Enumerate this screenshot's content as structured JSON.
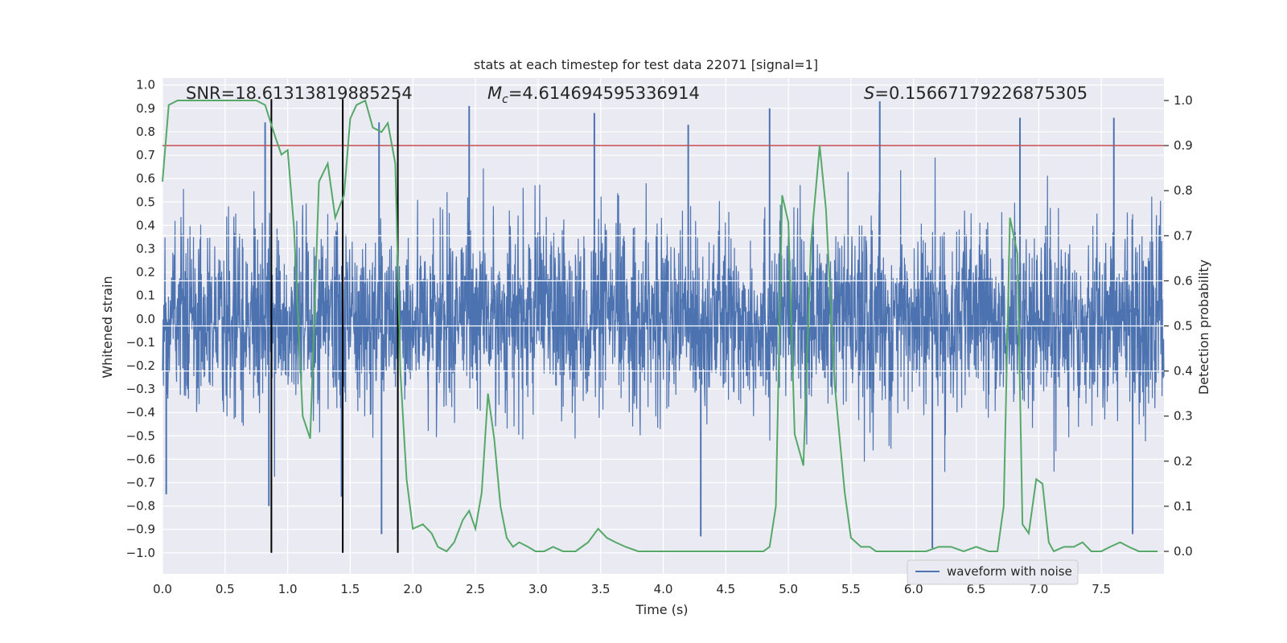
{
  "chart_data": {
    "type": "line",
    "title": "stats at each timestep for test data 22071 [signal=1]",
    "xlabel": "Time (s)",
    "ylabel_left": "Whitened strain",
    "ylabel_right": "Detection probability",
    "xlim": [
      0.0,
      8.0
    ],
    "ylim_left": [
      -1.09,
      1.03
    ],
    "ylim_right": [
      -0.05,
      1.05
    ],
    "x_ticks": [
      0.0,
      0.5,
      1.0,
      1.5,
      2.0,
      2.5,
      3.0,
      3.5,
      4.0,
      4.5,
      5.0,
      5.5,
      6.0,
      6.5,
      7.0,
      7.5
    ],
    "x_tick_labels": [
      "0.0",
      "0.5",
      "1.0",
      "1.5",
      "2.0",
      "2.5",
      "3.0",
      "3.5",
      "4.0",
      "4.5",
      "5.0",
      "5.5",
      "6.0",
      "6.5",
      "7.0",
      "7.5"
    ],
    "y_left_ticks": [
      1.0,
      0.9,
      0.8,
      0.7,
      0.6,
      0.5,
      0.4,
      0.3,
      0.2,
      0.1,
      0.0,
      -0.1,
      -0.2,
      -0.3,
      -0.4,
      -0.5,
      -0.6,
      -0.7,
      -0.8,
      -0.9,
      -1.0
    ],
    "y_left_tick_labels": [
      "1.0",
      "0.9",
      "0.8",
      "0.7",
      "0.6",
      "0.5",
      "0.4",
      "0.3",
      "0.2",
      "0.1",
      "0.0",
      "−0.1",
      "−0.2",
      "−0.3",
      "−0.4",
      "−0.5",
      "−0.6",
      "−0.7",
      "−0.8",
      "−0.9",
      "−1.0"
    ],
    "y_right_ticks": [
      1.0,
      0.9,
      0.8,
      0.7,
      0.6,
      0.5,
      0.4,
      0.3,
      0.2,
      0.1,
      0.0
    ],
    "y_right_tick_labels": [
      "1.0",
      "0.9",
      "0.8",
      "0.7",
      "0.6",
      "0.5",
      "0.4",
      "0.3",
      "0.2",
      "0.1",
      "0.0"
    ],
    "annotations": {
      "snr": "SNR=18.61313819885254",
      "mc_symbol": "M",
      "mc_subscript": "c",
      "mc_value": "=4.614694595336914",
      "s_symbol": "S",
      "s_value": "=0.15667179226875305"
    },
    "threshold": {
      "value": 0.9,
      "axis": "right",
      "color": "#c44e52"
    },
    "vertical_markers": {
      "x": [
        0.87,
        1.44,
        1.88
      ],
      "y_range": [
        -1.0,
        0.94
      ],
      "color": "#000000"
    },
    "series": [
      {
        "name": "waveform with noise",
        "axis": "left",
        "color": "#4c72b0",
        "style": "dense noisy waveform",
        "x_range": [
          0.0,
          8.0
        ],
        "typical_amplitude": 0.35,
        "notable_positive_peaks": [
          {
            "x": 0.82,
            "y": 0.84
          },
          {
            "x": 1.73,
            "y": 0.84
          },
          {
            "x": 2.45,
            "y": 0.91
          },
          {
            "x": 3.45,
            "y": 0.88
          },
          {
            "x": 4.2,
            "y": 0.83
          },
          {
            "x": 4.85,
            "y": 0.9
          },
          {
            "x": 5.73,
            "y": 0.93
          },
          {
            "x": 6.85,
            "y": 0.86
          },
          {
            "x": 7.6,
            "y": 0.86
          }
        ],
        "notable_negative_peaks": [
          {
            "x": 0.03,
            "y": -0.75
          },
          {
            "x": 0.85,
            "y": -0.8
          },
          {
            "x": 1.43,
            "y": -0.76
          },
          {
            "x": 1.75,
            "y": -0.92
          },
          {
            "x": 1.88,
            "y": -0.95
          },
          {
            "x": 4.3,
            "y": -0.93
          },
          {
            "x": 6.15,
            "y": -0.98
          },
          {
            "x": 7.75,
            "y": -0.92
          }
        ]
      },
      {
        "name": "detection probability",
        "axis": "right",
        "color": "#55a868",
        "x": [
          0.0,
          0.05,
          0.12,
          0.2,
          0.3,
          0.45,
          0.6,
          0.75,
          0.82,
          0.9,
          0.95,
          1.0,
          1.05,
          1.12,
          1.18,
          1.25,
          1.32,
          1.38,
          1.45,
          1.5,
          1.55,
          1.62,
          1.68,
          1.75,
          1.8,
          1.86,
          1.9,
          1.95,
          2.0,
          2.08,
          2.15,
          2.2,
          2.27,
          2.33,
          2.4,
          2.45,
          2.5,
          2.55,
          2.6,
          2.65,
          2.7,
          2.75,
          2.8,
          2.85,
          2.92,
          2.98,
          3.05,
          3.12,
          3.2,
          3.3,
          3.4,
          3.48,
          3.55,
          3.62,
          3.7,
          3.8,
          3.9,
          4.0,
          4.2,
          4.5,
          4.7,
          4.8,
          4.85,
          4.9,
          4.95,
          5.0,
          5.05,
          5.12,
          5.18,
          5.25,
          5.3,
          5.37,
          5.45,
          5.5,
          5.58,
          5.65,
          5.7,
          5.8,
          5.9,
          6.0,
          6.1,
          6.2,
          6.3,
          6.4,
          6.5,
          6.6,
          6.67,
          6.72,
          6.77,
          6.83,
          6.87,
          6.92,
          6.98,
          7.03,
          7.08,
          7.12,
          7.2,
          7.28,
          7.35,
          7.42,
          7.5,
          7.57,
          7.65,
          7.72,
          7.8,
          7.87,
          7.95
        ],
        "y": [
          0.82,
          0.99,
          1.0,
          1.0,
          1.0,
          1.0,
          1.0,
          1.0,
          0.99,
          0.92,
          0.88,
          0.89,
          0.72,
          0.3,
          0.25,
          0.82,
          0.86,
          0.74,
          0.79,
          0.96,
          0.99,
          1.0,
          0.94,
          0.93,
          0.95,
          0.86,
          0.4,
          0.16,
          0.05,
          0.06,
          0.04,
          0.01,
          0.0,
          0.02,
          0.07,
          0.09,
          0.05,
          0.13,
          0.35,
          0.25,
          0.1,
          0.03,
          0.01,
          0.02,
          0.01,
          0.0,
          0.0,
          0.01,
          0.0,
          0.0,
          0.02,
          0.05,
          0.03,
          0.02,
          0.01,
          0.0,
          0.0,
          0.0,
          0.0,
          0.0,
          0.0,
          0.0,
          0.01,
          0.1,
          0.79,
          0.73,
          0.26,
          0.19,
          0.68,
          0.9,
          0.76,
          0.37,
          0.13,
          0.03,
          0.01,
          0.01,
          0.0,
          0.0,
          0.0,
          0.0,
          0.0,
          0.01,
          0.01,
          0.0,
          0.01,
          0.0,
          0.0,
          0.1,
          0.74,
          0.66,
          0.06,
          0.04,
          0.16,
          0.15,
          0.02,
          0.0,
          0.01,
          0.01,
          0.02,
          0.0,
          0.0,
          0.01,
          0.02,
          0.01,
          0.0,
          0.0,
          0.0
        ]
      }
    ],
    "legend": {
      "entries": [
        "waveform with noise"
      ],
      "location": "lower right"
    }
  }
}
